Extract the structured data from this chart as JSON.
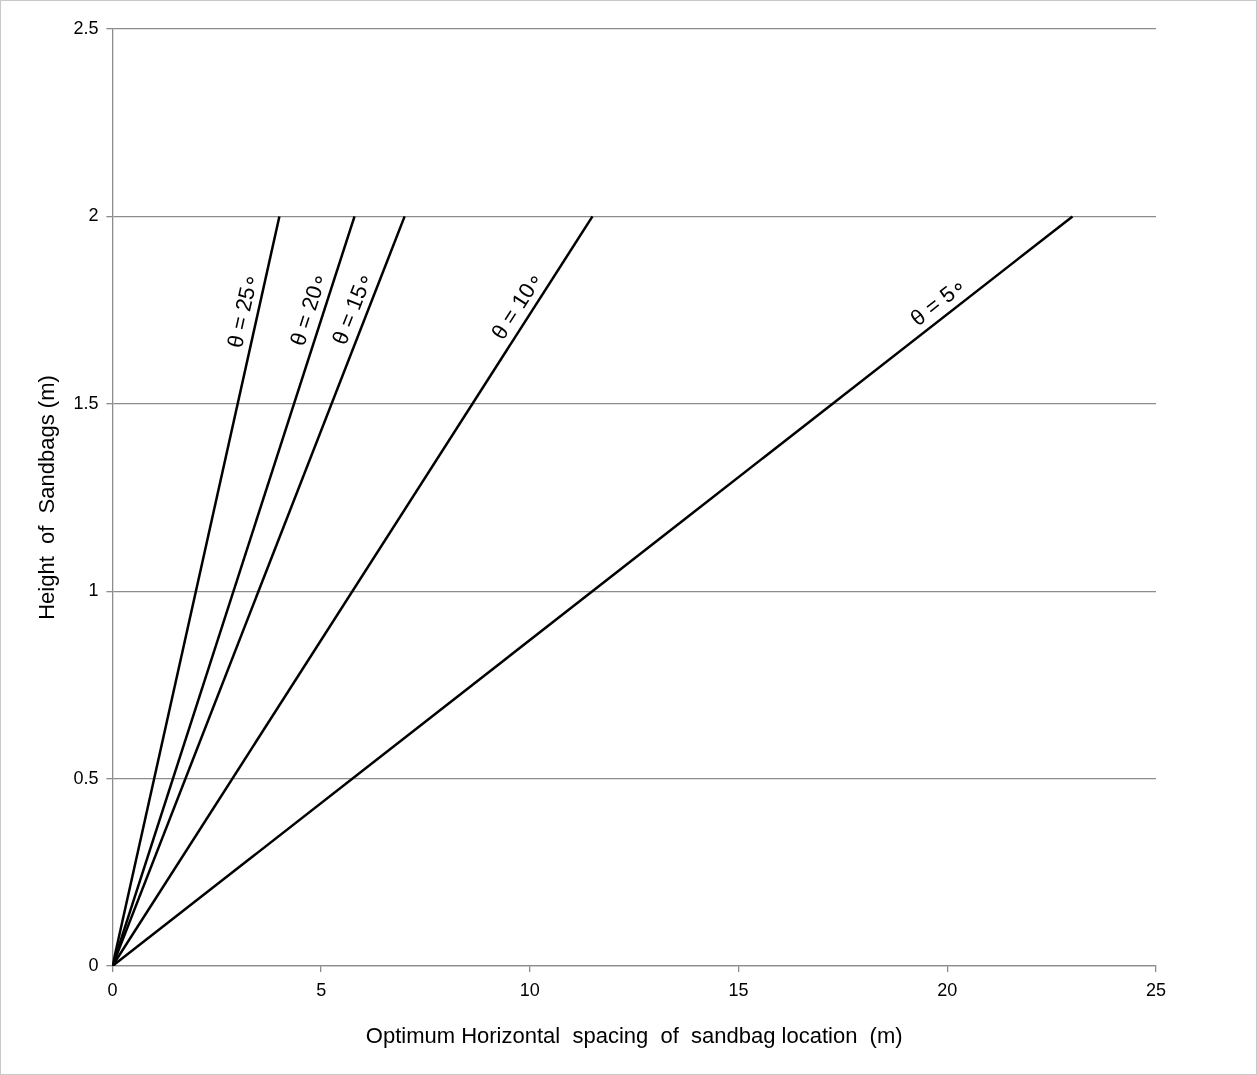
{
  "chart_data": {
    "type": "line",
    "xlabel": "Optimum Horizontal  spacing  of  sandbag location  (m)",
    "ylabel": "Height  of  Sandbags (m)",
    "xlim": [
      0,
      25
    ],
    "xticks": [
      0,
      5,
      10,
      15,
      20,
      25
    ],
    "ylim": [
      0,
      2.5
    ],
    "yticks": [
      0,
      0.5,
      1,
      1.5,
      2,
      2.5
    ],
    "grid": "y",
    "legend": false,
    "marker": "none",
    "line_style": "solid",
    "series": [
      {
        "name": "θ = 25∘",
        "color": "#000000",
        "x": [
          0,
          4.0
        ],
        "values": [
          0,
          2
        ]
      },
      {
        "name": "θ = 20∘",
        "color": "#000000",
        "x": [
          0,
          5.8
        ],
        "values": [
          0,
          2
        ]
      },
      {
        "name": "θ = 15∘",
        "color": "#000000",
        "x": [
          0,
          7.0
        ],
        "values": [
          0,
          2
        ]
      },
      {
        "name": "θ = 10∘",
        "color": "#000000",
        "x": [
          0,
          11.5
        ],
        "values": [
          0,
          2
        ]
      },
      {
        "name": "θ = 5∘",
        "color": "#000000",
        "x": [
          0,
          23.0
        ],
        "values": [
          0,
          2
        ]
      }
    ]
  }
}
